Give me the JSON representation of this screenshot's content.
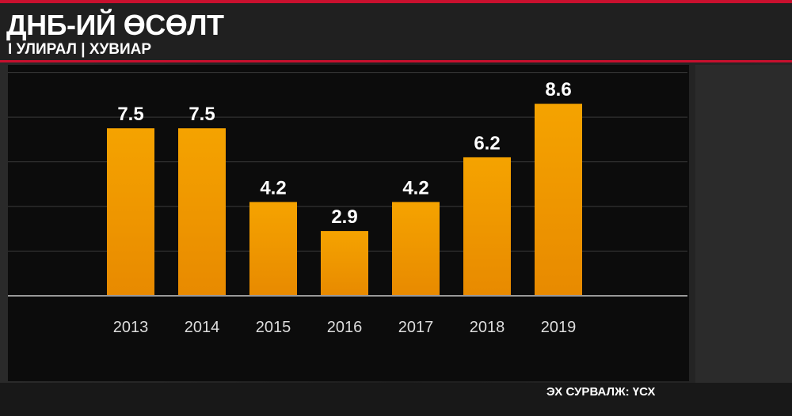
{
  "header": {
    "title": "ДНБ-ИЙ ӨСӨЛТ",
    "subtitle": "I УЛИРАЛ | ХУВИАР"
  },
  "source": "ЭХ СУРВАЛЖ: ҮСХ",
  "colors": {
    "bar": "#f5a300",
    "bar_dark": "#e88a00",
    "accent": "#c8102e",
    "value_label": "#ffffff",
    "tick_label": "#dddddd"
  },
  "chart_data": {
    "type": "bar",
    "title": "ДНБ-ИЙ ӨСӨЛТ",
    "subtitle": "I УЛИРАЛ | ХУВИАР",
    "categories": [
      "2013",
      "2014",
      "2015",
      "2016",
      "2017",
      "2018",
      "2019"
    ],
    "values": [
      7.5,
      7.5,
      4.2,
      2.9,
      4.2,
      6.2,
      8.6
    ],
    "ylim": [
      0,
      10
    ],
    "grid": true,
    "legend": "none"
  }
}
